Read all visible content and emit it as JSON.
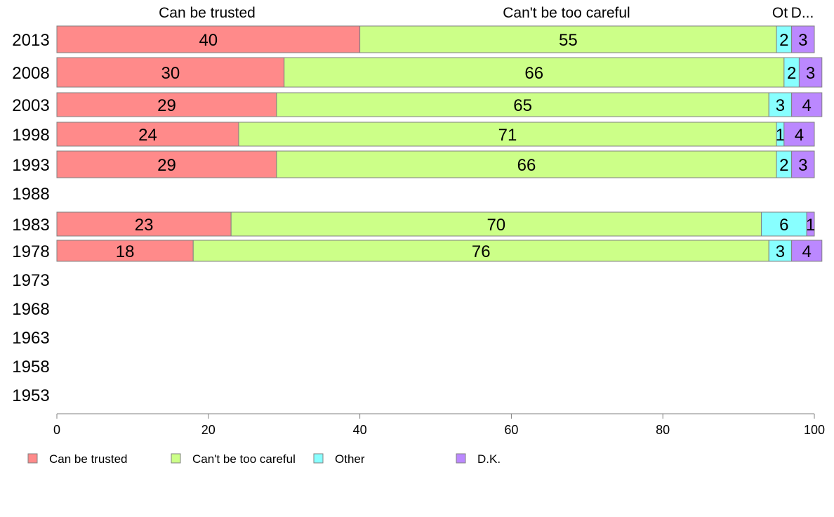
{
  "chart_data": {
    "type": "bar",
    "orientation": "horizontal",
    "stacked": true,
    "categories": [
      "2013",
      "2008",
      "2003",
      "1998",
      "1993",
      "1988",
      "1983",
      "1978",
      "1973",
      "1968",
      "1963",
      "1958",
      "1953"
    ],
    "series": [
      {
        "name": "Can be trusted",
        "color": "#ff8a8a",
        "values": [
          40,
          30,
          29,
          24,
          29,
          null,
          23,
          18,
          null,
          null,
          null,
          null,
          null
        ]
      },
      {
        "name": "Can't be too careful",
        "color": "#ccff88",
        "values": [
          55,
          66,
          65,
          71,
          66,
          null,
          70,
          76,
          null,
          null,
          null,
          null,
          null
        ]
      },
      {
        "name": "Other",
        "color": "#88ffff",
        "values": [
          2,
          2,
          3,
          1,
          2,
          null,
          6,
          3,
          null,
          null,
          null,
          null,
          null
        ]
      },
      {
        "name": "D.K.",
        "color": "#bb88ff",
        "values": [
          3,
          3,
          4,
          4,
          3,
          null,
          1,
          4,
          null,
          null,
          null,
          null,
          null
        ]
      }
    ],
    "column_headers": [
      "Can be trusted",
      "Can't be too careful",
      "Ot",
      "D..."
    ],
    "xticks": [
      0,
      20,
      40,
      60,
      80,
      100
    ],
    "xlim": [
      0,
      100
    ],
    "grid": false,
    "legend_position": "bottom"
  }
}
